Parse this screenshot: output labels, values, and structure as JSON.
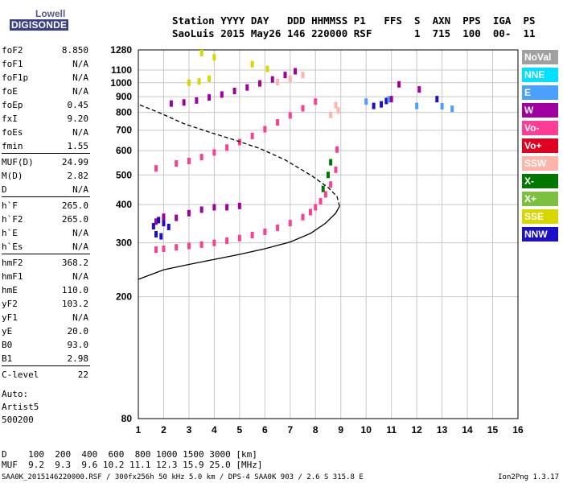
{
  "logo": {
    "line1": "Lowell",
    "line2": "DIGISONDE"
  },
  "header": {
    "line1": "Station YYYY DAY   DDD HHMMSS P1   FFS  S  AXN  PPS  IGA  PS",
    "line2": "SaoLuis 2015 May26 146 220000 RSF       1  715  100  00-  11"
  },
  "params": [
    {
      "name": "foF2",
      "value": "8.850"
    },
    {
      "name": "foF1",
      "value": "N/A"
    },
    {
      "name": "foF1p",
      "value": "N/A"
    },
    {
      "name": "foE",
      "value": "N/A"
    },
    {
      "name": "foEp",
      "value": "0.45"
    },
    {
      "name": "fxI",
      "value": "9.20"
    },
    {
      "name": "foEs",
      "value": "N/A"
    },
    {
      "name": "fmin",
      "value": "1.55"
    },
    {
      "name": "MUF(D)",
      "value": "24.99"
    },
    {
      "name": "M(D)",
      "value": "2.82"
    },
    {
      "name": "D",
      "value": "N/A"
    },
    {
      "name": "h`F",
      "value": "265.0"
    },
    {
      "name": "h`F2",
      "value": "265.0"
    },
    {
      "name": "h`E",
      "value": "N/A"
    },
    {
      "name": "h`Es",
      "value": "N/A"
    },
    {
      "name": "hmF2",
      "value": "368.2"
    },
    {
      "name": "hmF1",
      "value": "N/A"
    },
    {
      "name": "hmE",
      "value": "110.0"
    },
    {
      "name": "yF2",
      "value": "103.2"
    },
    {
      "name": "yF1",
      "value": "N/A"
    },
    {
      "name": "yE",
      "value": "20.0"
    },
    {
      "name": "B0",
      "value": "93.0"
    },
    {
      "name": "B1",
      "value": "2.98"
    },
    {
      "name": "C-level",
      "value": "22"
    }
  ],
  "free_text": [
    "Auto:",
    "Artist5",
    "500200"
  ],
  "legend": [
    {
      "label": "NoVal",
      "color": "#a0a0a0"
    },
    {
      "label": "NNE",
      "color": "#00e0ff"
    },
    {
      "label": "E",
      "color": "#4a9fff"
    },
    {
      "label": "W",
      "color": "#a000a0"
    },
    {
      "label": "Vo-",
      "color": "#ff3c96"
    },
    {
      "label": "Vo+",
      "color": "#e00020"
    },
    {
      "label": "SSW",
      "color": "#ffb4aa"
    },
    {
      "label": "X-",
      "color": "#007800"
    },
    {
      "label": "X+",
      "color": "#7cc040"
    },
    {
      "label": "SSE",
      "color": "#d8d800"
    },
    {
      "label": "NNW",
      "color": "#1c0fc8"
    }
  ],
  "bottom": {
    "line1": "D    100  200  400  600  800 1000 1500 3000 [km]",
    "line2": "MUF  9.2  9.3  9.6 10.2 11.1 12.3 15.9 25.0 [MHz]"
  },
  "footer": {
    "left": "SAA0K_2015146220000.RSF / 300fx256h 50 kHz 5.0 km / DPS-4 SAA0K 903 / 2.6 S 315.8 E",
    "right": "Ion2Png 1.3.17"
  },
  "chart_data": {
    "type": "scatter",
    "title": "",
    "xlabel": "",
    "ylabel": "",
    "xlim": [
      1,
      16
    ],
    "ylim": [
      80,
      1280
    ],
    "x_ticks": [
      1,
      2,
      3,
      4,
      5,
      6,
      7,
      8,
      9,
      10,
      11,
      12,
      13,
      14,
      15,
      16
    ],
    "y_ticks": [
      80,
      200,
      300,
      400,
      500,
      600,
      700,
      800,
      900,
      1000,
      1100,
      1280
    ],
    "y_scale_note": "logarithmic",
    "series": [
      {
        "color": "#ff3c96",
        "points": [
          [
            1.7,
            285
          ],
          [
            2.0,
            287
          ],
          [
            2.5,
            290
          ],
          [
            3.0,
            293
          ],
          [
            3.5,
            296
          ],
          [
            4.0,
            300
          ],
          [
            4.5,
            305
          ],
          [
            5.0,
            311
          ],
          [
            5.5,
            318
          ],
          [
            6.0,
            326
          ],
          [
            6.5,
            336
          ],
          [
            7.0,
            348
          ],
          [
            7.5,
            364
          ],
          [
            7.8,
            378
          ],
          [
            8.0,
            392
          ],
          [
            8.2,
            410
          ],
          [
            8.4,
            432
          ],
          [
            8.6,
            465
          ],
          [
            8.8,
            520
          ],
          [
            8.85,
            605
          ]
        ]
      },
      {
        "color": "#007800",
        "points": [
          [
            8.3,
            450
          ],
          [
            8.5,
            500
          ],
          [
            8.6,
            550
          ]
        ]
      },
      {
        "color": "#ff3c96",
        "points": [
          [
            1.7,
            525
          ],
          [
            2.5,
            545
          ],
          [
            3.0,
            555
          ],
          [
            3.5,
            572
          ],
          [
            4.0,
            592
          ],
          [
            4.5,
            614
          ],
          [
            5.0,
            640
          ],
          [
            5.5,
            670
          ],
          [
            6.0,
            705
          ],
          [
            6.5,
            742
          ],
          [
            7.0,
            782
          ],
          [
            7.5,
            825
          ],
          [
            8.0,
            868
          ]
        ]
      },
      {
        "color": "#a000a0",
        "points": [
          [
            2.3,
            855
          ],
          [
            2.8,
            862
          ],
          [
            3.3,
            875
          ],
          [
            3.8,
            895
          ],
          [
            4.3,
            915
          ],
          [
            4.8,
            940
          ],
          [
            5.3,
            965
          ],
          [
            5.8,
            995
          ],
          [
            6.3,
            1025
          ],
          [
            6.8,
            1060
          ],
          [
            7.2,
            1090
          ]
        ]
      },
      {
        "color": "#ffb4aa",
        "points": [
          [
            6.5,
            1005
          ],
          [
            7.0,
            1030
          ],
          [
            7.5,
            1060
          ],
          [
            8.8,
            845
          ],
          [
            8.9,
            812
          ],
          [
            8.6,
            785
          ]
        ]
      },
      {
        "color": "#a000a0",
        "points": [
          [
            1.7,
            352
          ],
          [
            2.0,
            365
          ],
          [
            2.5,
            362
          ],
          [
            3.0,
            375
          ],
          [
            3.5,
            385
          ],
          [
            4.0,
            392
          ],
          [
            4.5,
            392
          ],
          [
            5.0,
            396
          ]
        ]
      },
      {
        "color": "#1c0fc8",
        "points": [
          [
            1.6,
            340
          ],
          [
            1.8,
            356
          ],
          [
            2.0,
            348
          ],
          [
            2.2,
            338
          ],
          [
            1.7,
            320
          ],
          [
            1.9,
            315
          ],
          [
            10.3,
            840
          ],
          [
            10.6,
            850
          ],
          [
            10.8,
            872
          ],
          [
            12.8,
            884
          ]
        ]
      },
      {
        "color": "#d8d800",
        "points": [
          [
            3.0,
            1000
          ],
          [
            3.4,
            1010
          ],
          [
            3.8,
            1030
          ],
          [
            4.0,
            1210
          ],
          [
            3.5,
            1250
          ],
          [
            5.5,
            1150
          ],
          [
            6.1,
            1110
          ]
        ]
      },
      {
        "color": "#4a9fff",
        "points": [
          [
            10.0,
            868
          ],
          [
            10.9,
            883
          ],
          [
            12.0,
            840
          ],
          [
            13.0,
            838
          ],
          [
            13.4,
            822
          ]
        ]
      },
      {
        "color": "#a000a0",
        "points": [
          [
            11.3,
            988
          ],
          [
            12.1,
            951
          ],
          [
            11.0,
            884
          ]
        ]
      },
      {
        "color": "#000000",
        "points": [
          [
            1.0,
            228
          ],
          [
            2.0,
            245
          ],
          [
            3.0,
            255
          ],
          [
            4.0,
            265
          ],
          [
            5.0,
            275
          ],
          [
            6.0,
            287
          ],
          [
            7.0,
            302
          ],
          [
            7.8,
            322
          ],
          [
            8.4,
            348
          ],
          [
            8.8,
            375
          ],
          [
            8.95,
            395
          ],
          [
            8.85,
            425
          ],
          [
            8.5,
            455
          ],
          [
            7.8,
            500
          ],
          [
            6.8,
            560
          ],
          [
            5.8,
            610
          ],
          [
            4.8,
            650
          ],
          [
            3.8,
            690
          ],
          [
            2.8,
            735
          ],
          [
            1.8,
            800
          ],
          [
            1.0,
            850
          ]
        ]
      }
    ]
  }
}
